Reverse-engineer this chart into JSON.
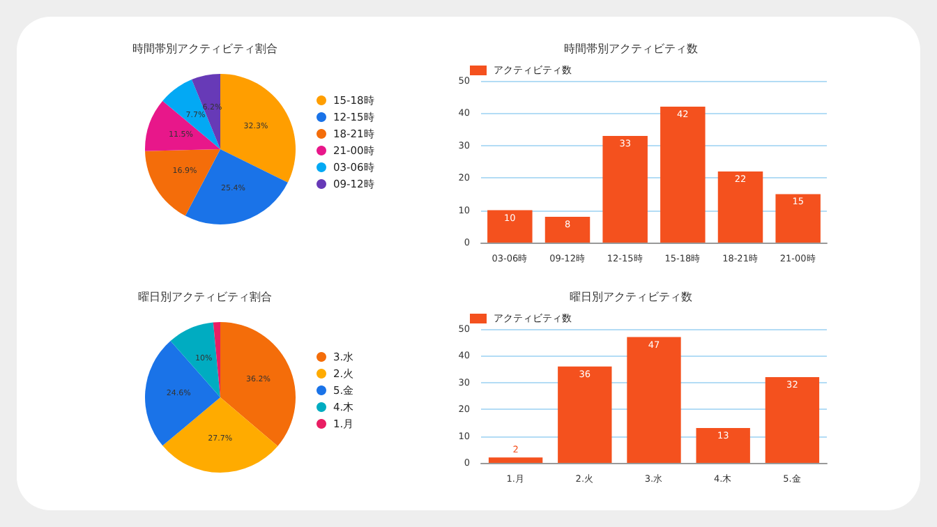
{
  "chart_data": [
    {
      "type": "pie",
      "title": "時間帯別アクティビティ割合",
      "categories": [
        "15-18時",
        "12-15時",
        "18-21時",
        "21-00時",
        "03-06時",
        "09-12時"
      ],
      "values": [
        32.3,
        25.4,
        16.9,
        11.5,
        7.7,
        6.2
      ],
      "value_labels": [
        "32.3%",
        "25.4%",
        "16.9%",
        "11.5%",
        "7.7%",
        "6.2%"
      ],
      "colors": [
        "#ff9e00",
        "#1a73e8",
        "#f46d0a",
        "#e8178a",
        "#03a9f4",
        "#673ab7"
      ],
      "legend": "right"
    },
    {
      "type": "bar",
      "title": "時間帯別アクティビティ数",
      "categories": [
        "03-06時",
        "09-12時",
        "12-15時",
        "15-18時",
        "18-21時",
        "21-00時"
      ],
      "series": [
        {
          "name": "アクティビティ数",
          "color": "#f4511e",
          "values": [
            10,
            8,
            33,
            42,
            22,
            15
          ]
        }
      ],
      "ylim": [
        0,
        50
      ],
      "yticks": [
        0,
        10,
        20,
        30,
        40,
        50
      ],
      "grid": "y",
      "legend": "top left",
      "data_labels": true
    },
    {
      "type": "pie",
      "title": "曜日別アクティビティ割合",
      "categories": [
        "3.水",
        "2.火",
        "5.金",
        "4.木",
        "1.月"
      ],
      "values": [
        36.2,
        27.7,
        24.6,
        10,
        1.5
      ],
      "value_labels": [
        "36.2%",
        "27.7%",
        "24.6%",
        "10%",
        null
      ],
      "colors": [
        "#f46d0a",
        "#ffab00",
        "#1a73e8",
        "#00acc1",
        "#e91e63"
      ],
      "legend": "right"
    },
    {
      "type": "bar",
      "title": "曜日別アクティビティ数",
      "categories": [
        "1.月",
        "2.火",
        "3.水",
        "4.木",
        "5.金"
      ],
      "series": [
        {
          "name": "アクティビティ数",
          "color": "#f4511e",
          "values": [
            2,
            36,
            47,
            13,
            32
          ]
        }
      ],
      "ylim": [
        0,
        50
      ],
      "yticks": [
        0,
        10,
        20,
        30,
        40,
        50
      ],
      "grid": "y",
      "legend": "top left",
      "data_labels": true
    }
  ]
}
